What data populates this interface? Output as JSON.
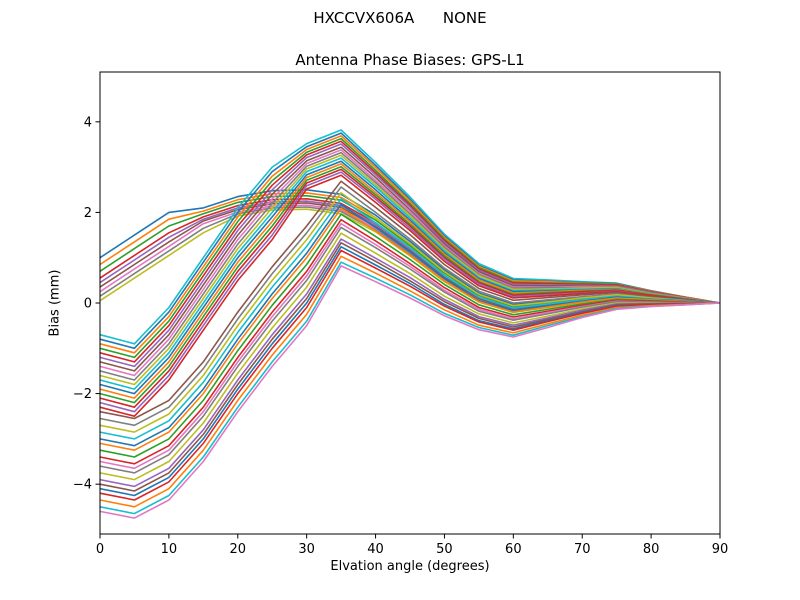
{
  "header": {
    "suptitle": "HXCCVX606A      NONE"
  },
  "chart_data": {
    "type": "line",
    "title": "Antenna Phase Biases: GPS-L1",
    "xlabel": "Elvation angle (degrees)",
    "ylabel": "Bias (mm)",
    "xlim": [
      0,
      90
    ],
    "ylim": [
      -5.1,
      5.1
    ],
    "xticks": [
      0,
      10,
      20,
      30,
      40,
      50,
      60,
      70,
      80,
      90
    ],
    "yticks": [
      -4,
      -2,
      0,
      2,
      4
    ],
    "grid": false,
    "legend": "none",
    "background_color": "#ffffff",
    "spine_color": "#000000",
    "x": [
      0,
      5,
      10,
      15,
      20,
      25,
      30,
      35,
      40,
      45,
      50,
      55,
      60,
      65,
      70,
      75,
      80,
      85,
      90
    ],
    "series": [
      {
        "c": "#1f77b4",
        "y": [
          1.0,
          1.5,
          2.0,
          2.1,
          2.35,
          2.48,
          2.5,
          2.4,
          1.94,
          1.36,
          0.73,
          0.22,
          -0.03,
          0.05,
          0.12,
          0.19,
          0.12,
          0.06,
          0
        ]
      },
      {
        "c": "#ff7f0e",
        "y": [
          0.85,
          1.35,
          1.85,
          2.03,
          2.28,
          2.41,
          2.43,
          2.33,
          1.88,
          1.31,
          0.69,
          0.19,
          -0.06,
          0.02,
          0.1,
          0.17,
          0.11,
          0.05,
          0
        ]
      },
      {
        "c": "#2ca02c",
        "y": [
          0.7,
          1.2,
          1.7,
          1.97,
          2.22,
          2.35,
          2.37,
          2.27,
          1.83,
          1.27,
          0.66,
          0.17,
          -0.08,
          0.0,
          0.09,
          0.16,
          0.1,
          0.05,
          0
        ]
      },
      {
        "c": "#d62728",
        "y": [
          0.55,
          1.05,
          1.55,
          1.9,
          2.15,
          2.28,
          2.3,
          2.2,
          1.77,
          1.22,
          0.61,
          0.13,
          -0.11,
          -0.02,
          0.07,
          0.15,
          0.09,
          0.05,
          0
        ]
      },
      {
        "c": "#9467bd",
        "y": [
          0.45,
          0.95,
          1.45,
          1.85,
          2.1,
          2.23,
          2.25,
          2.15,
          1.73,
          1.18,
          0.58,
          0.11,
          -0.13,
          -0.04,
          0.06,
          0.14,
          0.09,
          0.04,
          0
        ]
      },
      {
        "c": "#8c564b",
        "y": [
          0.35,
          0.85,
          1.35,
          1.81,
          2.06,
          2.19,
          2.21,
          2.11,
          1.69,
          1.15,
          0.56,
          0.09,
          -0.15,
          -0.05,
          0.05,
          0.13,
          0.08,
          0.04,
          0
        ]
      },
      {
        "c": "#e377c2",
        "y": [
          0.25,
          0.75,
          1.25,
          1.75,
          2.01,
          2.14,
          2.16,
          2.06,
          1.65,
          1.11,
          0.53,
          0.06,
          -0.17,
          -0.07,
          0.03,
          0.12,
          0.07,
          0.04,
          0
        ]
      },
      {
        "c": "#7f7f7f",
        "y": [
          0.15,
          0.65,
          1.15,
          1.65,
          1.97,
          2.1,
          2.12,
          2.02,
          1.61,
          1.08,
          0.5,
          0.04,
          -0.19,
          -0.09,
          0.02,
          0.11,
          0.07,
          0.03,
          0
        ]
      },
      {
        "c": "#bcbd22",
        "y": [
          0.05,
          0.55,
          1.05,
          1.55,
          1.92,
          2.05,
          2.07,
          1.97,
          1.57,
          1.04,
          0.47,
          0.02,
          -0.21,
          -0.1,
          0.01,
          0.11,
          0.07,
          0.03,
          0
        ]
      },
      {
        "c": "#17becf",
        "y": [
          -0.7,
          -0.9,
          -0.1,
          1.0,
          2.1,
          3.0,
          3.52,
          3.82,
          3.1,
          2.34,
          1.52,
          0.87,
          0.54,
          0.51,
          0.47,
          0.44,
          0.27,
          0.13,
          0
        ]
      },
      {
        "c": "#1f77b4",
        "y": [
          -0.8,
          -1.0,
          -0.2,
          0.9,
          2.0,
          2.9,
          3.45,
          3.75,
          3.04,
          2.29,
          1.48,
          0.83,
          0.51,
          0.48,
          0.45,
          0.43,
          0.27,
          0.13,
          0
        ]
      },
      {
        "c": "#ff7f0e",
        "y": [
          -0.9,
          -1.1,
          -0.3,
          0.8,
          1.9,
          2.8,
          3.39,
          3.69,
          2.99,
          2.25,
          1.45,
          0.81,
          0.49,
          0.47,
          0.44,
          0.42,
          0.26,
          0.13,
          0
        ]
      },
      {
        "c": "#2ca02c",
        "y": [
          -1.0,
          -1.2,
          -0.4,
          0.7,
          1.8,
          2.7,
          3.33,
          3.63,
          2.93,
          2.2,
          1.41,
          0.78,
          0.46,
          0.44,
          0.43,
          0.41,
          0.25,
          0.12,
          0
        ]
      },
      {
        "c": "#d62728",
        "y": [
          -1.1,
          -1.3,
          -0.5,
          0.6,
          1.7,
          2.6,
          3.27,
          3.57,
          2.88,
          2.16,
          1.38,
          0.75,
          0.44,
          0.43,
          0.41,
          0.4,
          0.25,
          0.12,
          0
        ]
      },
      {
        "c": "#9467bd",
        "y": [
          -1.2,
          -1.4,
          -0.6,
          0.5,
          1.6,
          2.5,
          3.21,
          3.51,
          2.83,
          2.12,
          1.34,
          0.72,
          0.41,
          0.4,
          0.39,
          0.38,
          0.24,
          0.11,
          0
        ]
      },
      {
        "c": "#8c564b",
        "y": [
          -1.3,
          -1.5,
          -0.7,
          0.4,
          1.5,
          2.4,
          3.14,
          3.44,
          2.77,
          2.06,
          1.3,
          0.69,
          0.38,
          0.38,
          0.37,
          0.37,
          0.23,
          0.11,
          0
        ]
      },
      {
        "c": "#e377c2",
        "y": [
          -1.4,
          -1.6,
          -0.8,
          0.3,
          1.4,
          2.3,
          3.08,
          3.38,
          2.71,
          2.02,
          1.26,
          0.65,
          0.35,
          0.35,
          0.36,
          0.36,
          0.22,
          0.11,
          0
        ]
      },
      {
        "c": "#7f7f7f",
        "y": [
          -1.5,
          -1.7,
          -0.9,
          0.2,
          1.3,
          2.2,
          3.02,
          3.32,
          2.66,
          1.97,
          1.23,
          0.63,
          0.33,
          0.34,
          0.34,
          0.35,
          0.22,
          0.1,
          0
        ]
      },
      {
        "c": "#bcbd22",
        "y": [
          -1.6,
          -1.8,
          -1.0,
          0.1,
          1.2,
          2.1,
          2.96,
          3.26,
          2.61,
          1.93,
          1.19,
          0.6,
          0.3,
          0.31,
          0.33,
          0.34,
          0.21,
          0.1,
          0
        ]
      },
      {
        "c": "#17becf",
        "y": [
          -1.7,
          -1.9,
          -1.1,
          0.0,
          1.1,
          2.0,
          2.9,
          3.2,
          2.56,
          1.88,
          1.15,
          0.56,
          0.27,
          0.29,
          0.31,
          0.32,
          0.2,
          0.1,
          0
        ]
      },
      {
        "c": "#1f77b4",
        "y": [
          -1.8,
          -2.0,
          -1.2,
          -0.1,
          1.0,
          1.9,
          2.83,
          3.13,
          2.5,
          1.83,
          1.11,
          0.54,
          0.25,
          0.27,
          0.29,
          0.31,
          0.19,
          0.09,
          0
        ]
      },
      {
        "c": "#ff7f0e",
        "y": [
          -1.9,
          -2.1,
          -1.3,
          -0.2,
          0.9,
          1.8,
          2.77,
          3.07,
          2.44,
          1.79,
          1.08,
          0.51,
          0.22,
          0.25,
          0.28,
          0.3,
          0.19,
          0.09,
          0
        ]
      },
      {
        "c": "#2ca02c",
        "y": [
          -2.0,
          -2.2,
          -1.4,
          -0.3,
          0.8,
          1.7,
          2.71,
          3.01,
          2.39,
          1.74,
          1.04,
          0.47,
          0.19,
          0.23,
          0.26,
          0.29,
          0.18,
          0.09,
          0
        ]
      },
      {
        "c": "#d62728",
        "y": [
          -2.1,
          -2.3,
          -1.5,
          -0.4,
          0.7,
          1.6,
          2.65,
          2.95,
          2.34,
          1.7,
          1.0,
          0.45,
          0.17,
          0.21,
          0.25,
          0.28,
          0.17,
          0.08,
          0
        ]
      },
      {
        "c": "#9467bd",
        "y": [
          -2.2,
          -2.4,
          -1.6,
          -0.5,
          0.6,
          1.5,
          2.59,
          2.89,
          2.29,
          1.65,
          0.97,
          0.42,
          0.14,
          0.18,
          0.22,
          0.26,
          0.16,
          0.08,
          0
        ]
      },
      {
        "c": "#d62728",
        "y": [
          -2.3,
          -2.5,
          -1.7,
          -0.6,
          0.5,
          1.4,
          2.52,
          2.82,
          2.22,
          1.6,
          0.92,
          0.38,
          0.11,
          0.16,
          0.21,
          0.25,
          0.16,
          0.08,
          0
        ]
      },
      {
        "c": "#8c564b",
        "y": [
          -2.4,
          -2.55,
          -2.15,
          -1.3,
          -0.2,
          0.8,
          1.7,
          2.69,
          2.11,
          1.51,
          0.85,
          0.32,
          0.06,
          0.12,
          0.18,
          0.23,
          0.14,
          0.07,
          0
        ]
      },
      {
        "c": "#7f7f7f",
        "y": [
          -2.55,
          -2.7,
          -2.3,
          -1.45,
          -0.35,
          0.65,
          1.55,
          2.56,
          2.0,
          1.41,
          0.77,
          0.26,
          0.0,
          0.07,
          0.14,
          0.2,
          0.12,
          0.06,
          0
        ]
      },
      {
        "c": "#bcbd22",
        "y": [
          -2.7,
          -2.85,
          -2.45,
          -1.6,
          -0.5,
          0.5,
          1.4,
          2.43,
          1.88,
          1.31,
          0.69,
          0.19,
          -0.06,
          0.02,
          0.11,
          0.18,
          0.11,
          0.05,
          0
        ]
      },
      {
        "c": "#17becf",
        "y": [
          -2.85,
          -3.0,
          -2.6,
          -1.75,
          -0.65,
          0.35,
          1.25,
          2.3,
          1.77,
          1.22,
          0.61,
          0.13,
          -0.11,
          -0.02,
          0.07,
          0.15,
          0.09,
          0.05,
          0
        ]
      },
      {
        "c": "#1f77b4",
        "y": [
          -3.0,
          -3.15,
          -2.75,
          -1.9,
          -0.8,
          0.2,
          1.1,
          2.18,
          1.67,
          1.13,
          0.54,
          0.05,
          -0.16,
          -0.06,
          0.04,
          0.13,
          0.08,
          0.04,
          0
        ]
      },
      {
        "c": "#ff7f0e",
        "y": [
          -3.1,
          -3.25,
          -2.85,
          -2.0,
          -0.9,
          0.1,
          1.0,
          2.09,
          1.59,
          1.06,
          0.49,
          0.03,
          -0.2,
          -0.09,
          0.02,
          0.11,
          0.07,
          0.03,
          0
        ]
      },
      {
        "c": "#2ca02c",
        "y": [
          -3.25,
          -3.4,
          -3.0,
          -2.15,
          -1.05,
          -0.05,
          0.85,
          1.96,
          1.47,
          0.96,
          0.41,
          -0.04,
          -0.26,
          -0.14,
          -0.02,
          0.08,
          0.05,
          0.02,
          0
        ]
      },
      {
        "c": "#d62728",
        "y": [
          -3.4,
          -3.55,
          -3.15,
          -2.3,
          -1.2,
          -0.2,
          0.7,
          1.84,
          1.37,
          0.87,
          0.34,
          -0.1,
          -0.31,
          -0.18,
          -0.05,
          0.06,
          0.04,
          0.02,
          0
        ]
      },
      {
        "c": "#e377c2",
        "y": [
          -3.5,
          -3.65,
          -3.25,
          -2.4,
          -1.3,
          -0.3,
          0.6,
          1.75,
          1.29,
          0.81,
          0.28,
          -0.14,
          -0.35,
          -0.21,
          -0.08,
          0.04,
          0.02,
          0.01,
          0
        ]
      },
      {
        "c": "#7f7f7f",
        "y": [
          -3.6,
          -3.75,
          -3.35,
          -2.5,
          -1.4,
          -0.4,
          0.5,
          1.67,
          1.22,
          0.75,
          0.24,
          -0.18,
          -0.38,
          -0.24,
          -0.09,
          0.03,
          0.02,
          0.01,
          0
        ]
      },
      {
        "c": "#bcbd22",
        "y": [
          -3.75,
          -3.9,
          -3.5,
          -2.65,
          -1.55,
          -0.55,
          0.35,
          1.54,
          1.1,
          0.65,
          0.15,
          -0.24,
          -0.44,
          -0.29,
          -0.13,
          0.0,
          0.0,
          0.0,
          0
        ]
      },
      {
        "c": "#9467bd",
        "y": [
          -3.9,
          -4.05,
          -3.65,
          -2.8,
          -1.7,
          -0.7,
          0.2,
          1.41,
          0.99,
          0.56,
          0.08,
          -0.3,
          -0.49,
          -0.33,
          -0.16,
          -0.02,
          -0.01,
          0.0,
          0
        ]
      },
      {
        "c": "#8c564b",
        "y": [
          -4.0,
          -4.15,
          -3.75,
          -2.9,
          -1.8,
          -0.8,
          0.1,
          1.33,
          0.92,
          0.49,
          0.03,
          -0.34,
          -0.53,
          -0.36,
          -0.19,
          -0.04,
          -0.02,
          -0.01,
          0
        ]
      },
      {
        "c": "#1f77b4",
        "y": [
          -4.1,
          -4.25,
          -3.85,
          -3.0,
          -1.9,
          -0.9,
          0.0,
          1.24,
          0.84,
          0.43,
          -0.03,
          -0.39,
          -0.57,
          -0.39,
          -0.21,
          -0.06,
          -0.04,
          -0.02,
          0
        ]
      },
      {
        "c": "#d62728",
        "y": [
          -4.2,
          -4.35,
          -3.95,
          -3.1,
          -2.0,
          -1.0,
          -0.1,
          1.16,
          0.77,
          0.37,
          -0.07,
          -0.42,
          -0.6,
          -0.41,
          -0.23,
          -0.07,
          -0.04,
          -0.02,
          0
        ]
      },
      {
        "c": "#ff7f0e",
        "y": [
          -4.35,
          -4.5,
          -4.1,
          -3.25,
          -2.15,
          -1.15,
          -0.25,
          1.03,
          0.66,
          0.27,
          -0.15,
          -0.49,
          -0.66,
          -0.46,
          -0.27,
          -0.1,
          -0.06,
          -0.03,
          0
        ]
      },
      {
        "c": "#17becf",
        "y": [
          -4.5,
          -4.65,
          -4.25,
          -3.4,
          -2.3,
          -1.3,
          -0.4,
          0.9,
          0.55,
          0.18,
          -0.23,
          -0.54,
          -0.71,
          -0.5,
          -0.3,
          -0.12,
          -0.07,
          -0.04,
          0
        ]
      },
      {
        "c": "#e377c2",
        "y": [
          -4.6,
          -4.75,
          -4.35,
          -3.5,
          -2.4,
          -1.4,
          -0.5,
          0.82,
          0.47,
          0.11,
          -0.28,
          -0.59,
          -0.75,
          -0.54,
          -0.32,
          -0.14,
          -0.08,
          -0.04,
          0
        ]
      }
    ]
  }
}
